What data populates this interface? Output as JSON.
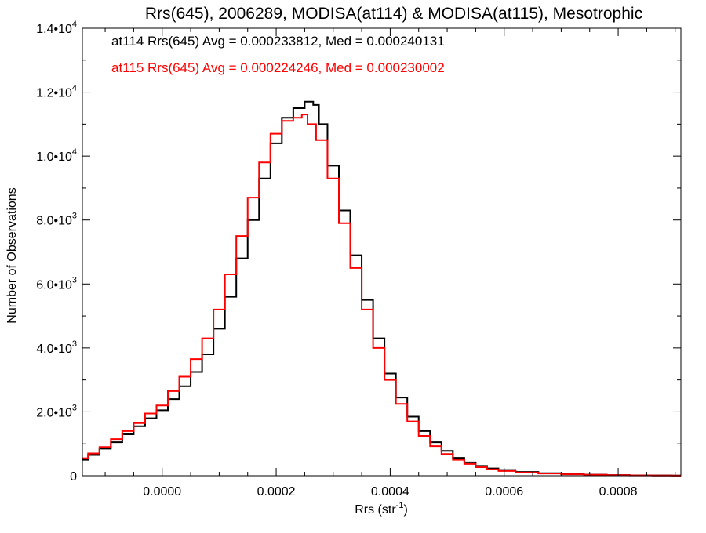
{
  "chart_data": {
    "type": "line",
    "title": "Rrs(645), 2006289, MODISA(at114) & MODISA(at115), Mesotrophic",
    "xlabel": "Rrs (str⁻¹)",
    "ylabel": "Number of Observations",
    "xlim": [
      -0.00014,
      0.00091
    ],
    "ylim": [
      0,
      14000
    ],
    "x_ticks": [
      0.0,
      0.0002,
      0.0004,
      0.0006,
      0.0008
    ],
    "x_tick_labels": [
      "0.0000",
      "0.0002",
      "0.0004",
      "0.0006",
      "0.0008"
    ],
    "y_ticks": [
      0,
      2000,
      4000,
      6000,
      8000,
      10000,
      12000,
      14000
    ],
    "y_tick_labels": [
      {
        "mantissa": "0",
        "exp": ""
      },
      {
        "mantissa": "2.0•10",
        "exp": "3"
      },
      {
        "mantissa": "4.0•10",
        "exp": "3"
      },
      {
        "mantissa": "6.0•10",
        "exp": "3"
      },
      {
        "mantissa": "8.0•10",
        "exp": "3"
      },
      {
        "mantissa": "1.0•10",
        "exp": "4"
      },
      {
        "mantissa": "1.2•10",
        "exp": "4"
      },
      {
        "mantissa": "1.4•10",
        "exp": "4"
      }
    ],
    "grid": false,
    "annotations": [
      "at114 Rrs(645) Avg = 0.000233812, Med = 0.000240131",
      "at115 Rrs(645) Avg = 0.000224246, Med = 0.000230002"
    ],
    "series": [
      {
        "color": "#000000",
        "x": [
          -0.00014,
          -0.00012,
          -0.0001,
          -8e-05,
          -6e-05,
          -4e-05,
          -2e-05,
          0.0,
          2e-05,
          4e-05,
          6e-05,
          8e-05,
          0.0001,
          0.00012,
          0.00014,
          0.00016,
          0.00018,
          0.0002,
          0.00022,
          0.00024,
          0.00026,
          0.00027,
          0.00028,
          0.0003,
          0.00032,
          0.00034,
          0.00036,
          0.00038,
          0.0004,
          0.00042,
          0.00044,
          0.00046,
          0.00048,
          0.0005,
          0.00052,
          0.00054,
          0.00056,
          0.00058,
          0.0006,
          0.00064,
          0.00068,
          0.00072,
          0.00076,
          0.0008,
          0.00084,
          0.00088,
          0.00091
        ],
        "values": [
          500,
          650,
          850,
          1050,
          1300,
          1550,
          1800,
          2050,
          2400,
          2800,
          3250,
          3800,
          4600,
          5600,
          6800,
          8000,
          9300,
          10400,
          11200,
          11500,
          11700,
          11600,
          11000,
          9700,
          8300,
          6900,
          5500,
          4300,
          3200,
          2450,
          1850,
          1400,
          1050,
          780,
          560,
          420,
          310,
          230,
          180,
          120,
          80,
          55,
          35,
          20,
          12,
          8,
          5
        ]
      },
      {
        "color": "#ff0000",
        "x": [
          -0.00014,
          -0.00012,
          -0.0001,
          -8e-05,
          -6e-05,
          -4e-05,
          -2e-05,
          0.0,
          2e-05,
          4e-05,
          6e-05,
          8e-05,
          0.0001,
          0.00012,
          0.00014,
          0.00016,
          0.00018,
          0.0002,
          0.00022,
          0.00024,
          0.00025,
          0.00026,
          0.00028,
          0.0003,
          0.00032,
          0.00034,
          0.00036,
          0.00038,
          0.0004,
          0.00042,
          0.00044,
          0.00046,
          0.00048,
          0.0005,
          0.00052,
          0.00054,
          0.00056,
          0.00058,
          0.0006,
          0.00064,
          0.00068,
          0.00072,
          0.00076,
          0.0008,
          0.00084,
          0.00088,
          0.00091
        ],
        "values": [
          550,
          700,
          900,
          1150,
          1400,
          1650,
          1950,
          2200,
          2650,
          3100,
          3650,
          4300,
          5200,
          6300,
          7500,
          8700,
          9800,
          10700,
          11100,
          11200,
          11300,
          11000,
          10500,
          9300,
          7900,
          6500,
          5200,
          4000,
          3000,
          2250,
          1700,
          1250,
          930,
          680,
          500,
          370,
          270,
          200,
          150,
          100,
          70,
          45,
          30,
          18,
          10,
          6,
          4
        ]
      }
    ]
  }
}
